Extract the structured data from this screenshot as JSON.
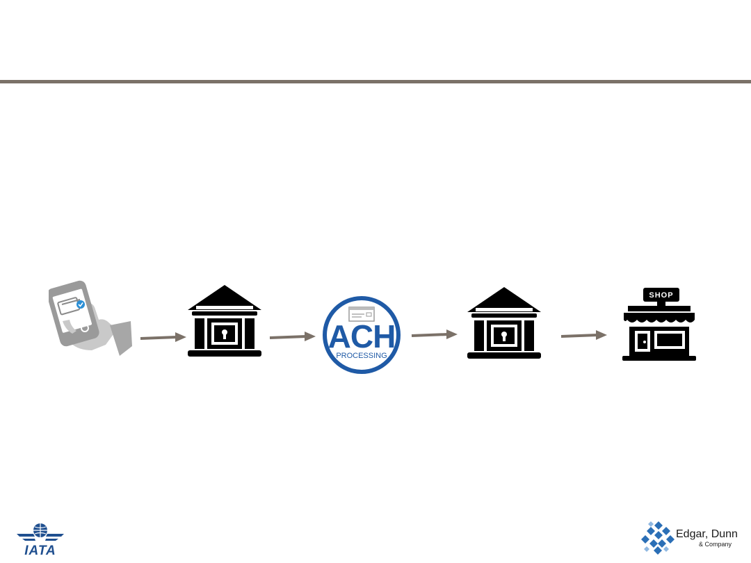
{
  "slide": {
    "title": ""
  },
  "flow": {
    "nodes": [
      {
        "id": "mobile-payer",
        "icon": "hand-holding-phone-icon"
      },
      {
        "id": "sending-bank",
        "icon": "bank-icon"
      },
      {
        "id": "ach-processing",
        "icon": "ach-processing-logo",
        "label_main": "ACH",
        "label_sub": "PROCESSING"
      },
      {
        "id": "receiving-bank",
        "icon": "bank-icon"
      },
      {
        "id": "merchant-shop",
        "icon": "shop-icon",
        "sign_text": "SHOP"
      }
    ],
    "arrow_color": "#7b7168",
    "accent_color": "#1f5aa6"
  },
  "footer": {
    "left_logo_text": "IATA",
    "right_logo_name": "Edgar, Dunn",
    "right_logo_sub": "& Company"
  }
}
